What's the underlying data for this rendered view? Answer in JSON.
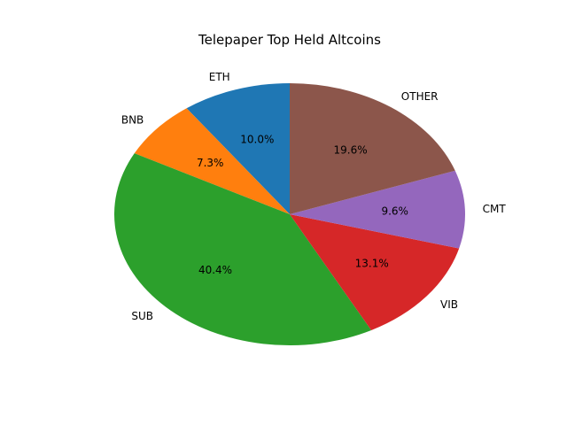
{
  "chart_data": {
    "type": "pie",
    "title": "Telepaper Top Held Altcoins",
    "labels": [
      "ETH",
      "BNB",
      "SUB",
      "VIB",
      "CMT",
      "OTHER"
    ],
    "values": [
      10.0,
      7.3,
      40.4,
      13.1,
      9.6,
      19.6
    ],
    "percent_labels": [
      "10.0%",
      "7.3%",
      "40.4%",
      "13.1%",
      "9.6%",
      "19.6%"
    ],
    "colors": [
      "#1f77b4",
      "#ff7f0e",
      "#2ca02c",
      "#d62728",
      "#9467bd",
      "#8c564b"
    ],
    "start_angle_deg": 90,
    "direction": "counterclockwise"
  }
}
